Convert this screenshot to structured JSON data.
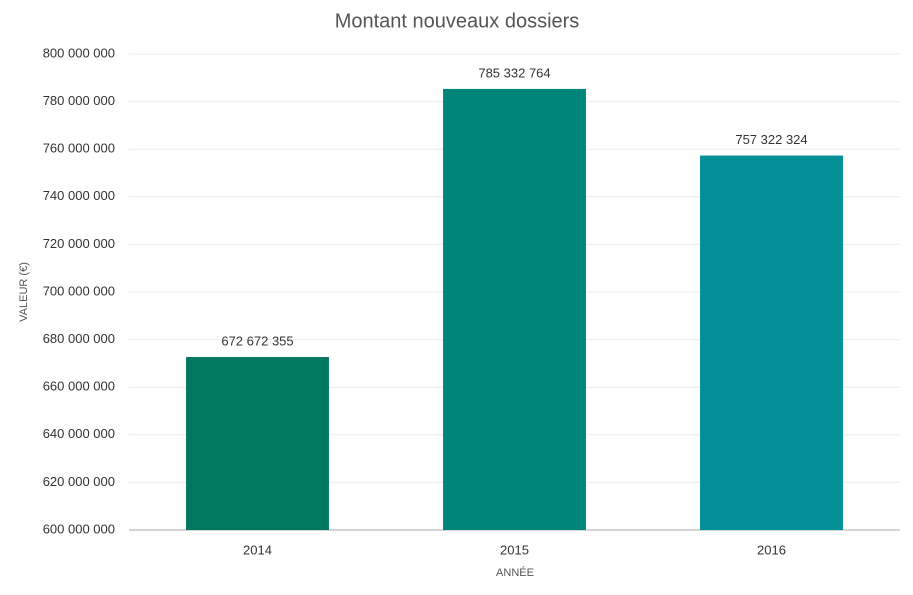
{
  "chart_data": {
    "type": "bar",
    "title": "Montant nouveaux dossiers",
    "x_label": "ANNÉE",
    "y_label": "VALEUR (€)",
    "categories": [
      "2014",
      "2015",
      "2016"
    ],
    "values": [
      672672355,
      785332764,
      757322324
    ],
    "value_labels": [
      "672 672 355",
      "785 332 764",
      "757 322 324"
    ],
    "colors": [
      "#00785f",
      "#00857a",
      "#009095"
    ],
    "ylim": [
      600000000,
      800000000
    ],
    "yticks": [
      {
        "value": 600000000,
        "label": "600 000 000"
      },
      {
        "value": 620000000,
        "label": "620 000 000"
      },
      {
        "value": 640000000,
        "label": "640 000 000"
      },
      {
        "value": 660000000,
        "label": "660 000 000"
      },
      {
        "value": 680000000,
        "label": "680 000 000"
      },
      {
        "value": 700000000,
        "label": "700 000 000"
      },
      {
        "value": 720000000,
        "label": "720 000 000"
      },
      {
        "value": 740000000,
        "label": "740 000 000"
      },
      {
        "value": 760000000,
        "label": "760 000 000"
      },
      {
        "value": 780000000,
        "label": "780 000 000"
      },
      {
        "value": 800000000,
        "label": "800 000 000"
      }
    ],
    "grid": true
  }
}
